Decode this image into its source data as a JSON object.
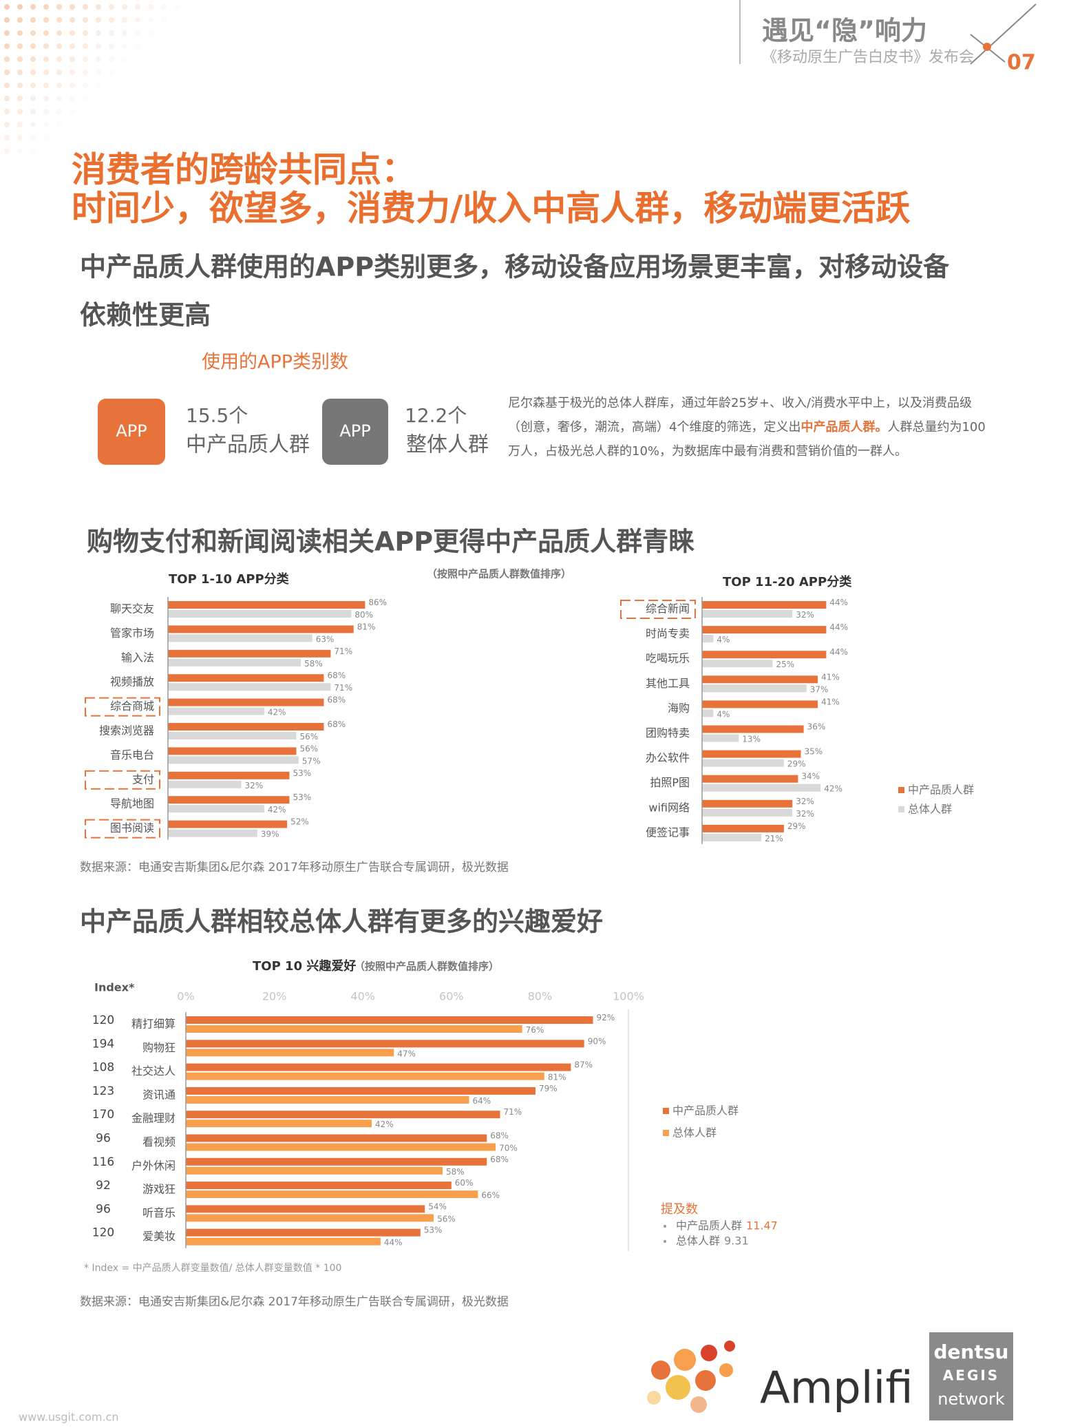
{
  "header": {
    "title": "遇见“隐”响力",
    "subtitle": "《移动原生广告白皮书》发布会",
    "page": "07"
  },
  "headline": [
    "消费者的跨龄共同点：",
    "时间少，欲望多，消费力/收入中高人群，移动端更活跃"
  ],
  "subheadline": [
    "中产品质人群使用的APP类别更多，移动设备应用场景更丰富，对移动设备",
    "依赖性更高"
  ],
  "app_count": {
    "title": "使用的APP类别数",
    "items": [
      {
        "icon": "APP",
        "value": "15.5个",
        "label": "中产品质人群"
      },
      {
        "icon": "APP",
        "value": "12.2个",
        "label": "整体人群"
      }
    ],
    "description": [
      "尼尔森基于极光的总体人群库，通过年龄25岁+、收入/消费水平中上，以及消费品级（创意，奢侈，潮流，高端）4个维度的筛选，定义出",
      "中产品质人群。",
      "人群总量约为100万人，占极光总人群的10%，为数据库中最有消费和营销价值的一群人。"
    ]
  },
  "section1": {
    "heading": "购物支付和新闻阅读相关APP更得中产品质人群青睐",
    "source": "数据来源：电通安吉斯集团&尼尔森 2017年移动原生广告联合专属调研，极光数据"
  },
  "chart_data": [
    {
      "type": "bar",
      "orientation": "horizontal",
      "title": "TOP 1-10 APP分类",
      "subtitle": "（按照中产品质人群数值排序）",
      "categories": [
        "聊天交友",
        "管家市场",
        "输入法",
        "视频播放",
        "综合商城",
        "搜索浏览器",
        "音乐电台",
        "支付",
        "导航地图",
        "图书阅读"
      ],
      "series": [
        {
          "color": "#e8733a",
          "values": [
            86,
            81,
            71,
            68,
            68,
            68,
            56,
            53,
            53,
            52
          ],
          "value_labels": [
            "86%",
            "81%",
            "71%",
            "68%",
            "68%",
            "68%",
            "56%",
            "53%",
            "53%",
            "52%"
          ]
        },
        {
          "color": "#d9d9d9",
          "values": [
            80,
            63,
            58,
            71,
            42,
            56,
            57,
            32,
            42,
            39
          ],
          "value_labels": [
            "80%",
            "63%",
            "58%",
            "71%",
            "42%",
            "56%",
            "57%",
            "32%",
            "42%",
            "39%"
          ]
        }
      ],
      "highlight": [
        4,
        7,
        9
      ]
    },
    {
      "type": "bar",
      "orientation": "horizontal",
      "title": "TOP 11-20 APP分类",
      "categories": [
        "综合新闻",
        "时尚专卖",
        "吃喝玩乐",
        "其他工具",
        "海购",
        "团购特卖",
        "办公软件",
        "拍照P图",
        "wifi网络",
        "便签记事"
      ],
      "series": [
        {
          "name": "中产品质人群",
          "color": "#e8733a",
          "values": [
            44,
            44,
            44,
            41,
            41,
            36,
            35,
            34,
            32,
            29
          ],
          "value_labels": [
            "44%",
            "44%",
            "44%",
            "41%",
            "41%",
            "36%",
            "35%",
            "34%",
            "32%",
            "29%"
          ]
        },
        {
          "name": "总体人群",
          "color": "#d9d9d9",
          "values": [
            32,
            4,
            25,
            37,
            4,
            13,
            29,
            42,
            32,
            21
          ],
          "value_labels": [
            "32%",
            "4%",
            "25%",
            "37%",
            "4%",
            "13%",
            "29%",
            "42%",
            "32%",
            "21%"
          ]
        }
      ],
      "highlight": [
        0
      ],
      "legend": "right"
    },
    {
      "type": "bar",
      "orientation": "horizontal",
      "title": "TOP 10 兴趣爱好",
      "subtitle": "（按照中产品质人群数值排序）",
      "index_label": "Index*",
      "index": [
        120,
        194,
        108,
        123,
        170,
        96,
        116,
        92,
        96,
        120
      ],
      "categories": [
        "精打细算",
        "购物狂",
        "社交达人",
        "资讯通",
        "金融理财",
        "看视频",
        "户外休闲",
        "游戏狂",
        "听音乐",
        "爱美妆"
      ],
      "series": [
        {
          "name": "中产品质人群",
          "color": "#e8733a",
          "values": [
            92,
            90,
            87,
            79,
            71,
            68,
            68,
            60,
            54,
            53
          ],
          "value_labels": [
            "92%",
            "90%",
            "87%",
            "79%",
            "71%",
            "68%",
            "68%",
            "60%",
            "54%",
            "53%"
          ]
        },
        {
          "name": "总体人群",
          "color": "#f6a04d",
          "values": [
            76,
            47,
            81,
            64,
            42,
            70,
            58,
            66,
            56,
            44
          ],
          "value_labels": [
            "76%",
            "47%",
            "81%",
            "64%",
            "42%",
            "70%",
            "58%",
            "66%",
            "56%",
            "44%"
          ]
        }
      ],
      "xlim": [
        0,
        100
      ],
      "xticks": [
        {
          "value": 0,
          "label": "0%"
        },
        {
          "value": 20,
          "label": "20%"
        },
        {
          "value": 40,
          "label": "40%"
        },
        {
          "value": 60,
          "label": "60%"
        },
        {
          "value": 80,
          "label": "80%"
        },
        {
          "value": 100,
          "label": "100%"
        }
      ],
      "legend": "right"
    }
  ],
  "section2": {
    "heading": "中产品质人群相较总体人群有更多的兴趣爱好",
    "mentions": {
      "title": "提及数",
      "items": [
        {
          "label": "中产品质人群",
          "value": 11.47
        },
        {
          "label": "总体人群",
          "value": 9.31
        }
      ]
    },
    "footnote": "* Index = 中产品质人群变量数值/ 总体人群变量数值 * 100",
    "source": "数据来源：电通安吉斯集团&尼尔森 2017年移动原生广告联合专属调研，极光数据"
  },
  "footer": {
    "brand": "Amplifi",
    "partner": [
      "dentsu",
      "AEGIS",
      "network"
    ],
    "watermark": "www.usgit.com.cn"
  }
}
